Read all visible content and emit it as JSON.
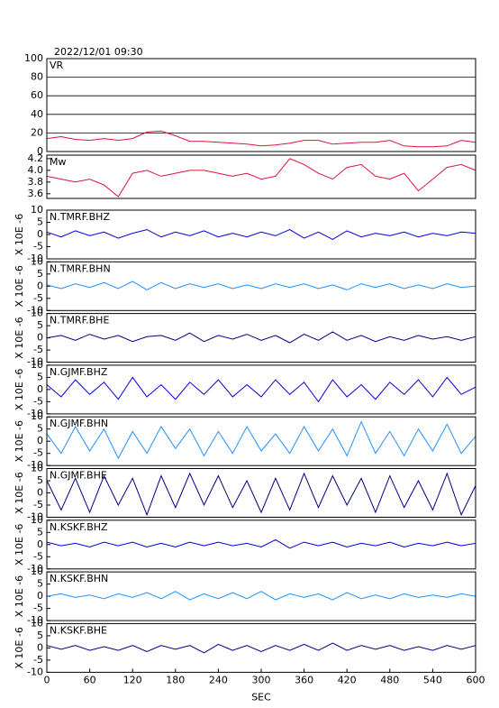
{
  "chart_data": [
    {
      "type": "line",
      "title": "2022/12/01 09:30",
      "label": "VR",
      "color": "#dc143c",
      "grid": true,
      "x": [
        0,
        20,
        40,
        60,
        80,
        100,
        120,
        140,
        160,
        180,
        200,
        220,
        240,
        260,
        280,
        300,
        320,
        340,
        360,
        380,
        400,
        420,
        440,
        460,
        480,
        500,
        520,
        540,
        560,
        580,
        600
      ],
      "values": [
        14,
        16,
        13,
        12,
        14,
        12,
        14,
        21,
        22,
        17,
        11,
        11,
        10,
        9,
        8,
        6,
        7,
        9,
        12,
        12,
        8,
        9,
        10,
        10,
        12,
        6,
        5,
        5,
        6,
        12,
        10
      ],
      "xlim": [
        0,
        600
      ],
      "ylim": [
        0,
        100
      ],
      "yticks": [
        0,
        20,
        40,
        60,
        80,
        100
      ]
    },
    {
      "type": "line",
      "label": "Mw",
      "color": "#dc143c",
      "x": [
        0,
        20,
        40,
        60,
        80,
        100,
        120,
        140,
        160,
        180,
        200,
        220,
        240,
        260,
        280,
        300,
        320,
        340,
        360,
        380,
        400,
        420,
        440,
        460,
        480,
        500,
        520,
        540,
        560,
        580,
        600
      ],
      "values": [
        3.9,
        3.85,
        3.8,
        3.85,
        3.75,
        3.55,
        3.95,
        4.0,
        3.9,
        3.95,
        4.0,
        4.0,
        3.95,
        3.9,
        3.95,
        3.85,
        3.9,
        4.2,
        4.1,
        3.95,
        3.85,
        4.05,
        4.1,
        3.9,
        3.85,
        3.95,
        3.65,
        3.85,
        4.05,
        4.1,
        4.0
      ],
      "xlim": [
        0,
        600
      ],
      "ylim": [
        3.52,
        4.26
      ],
      "yticks": [
        3.6,
        3.8,
        {
          "value": 4,
          "label": "4.0"
        },
        4.2
      ]
    },
    {
      "type": "line",
      "label": "N.TMRF.BHZ",
      "ylabel": "X 10E -6",
      "color": "#0000e0",
      "x": [
        0,
        20,
        40,
        60,
        80,
        100,
        120,
        140,
        160,
        180,
        200,
        220,
        240,
        260,
        280,
        300,
        320,
        340,
        360,
        380,
        400,
        420,
        440,
        460,
        480,
        500,
        520,
        540,
        560,
        580,
        600
      ],
      "values": [
        1,
        -1,
        1.5,
        -0.5,
        1,
        -1.5,
        0.5,
        2,
        -1,
        1,
        -0.5,
        1.5,
        -1,
        0.5,
        -1,
        1,
        -0.5,
        2,
        -1.5,
        1,
        -2,
        1.5,
        -1,
        0.5,
        -0.5,
        1,
        -1,
        0.5,
        -0.5,
        1,
        0.5
      ],
      "xlim": [
        0,
        600
      ],
      "ylim": [
        -10,
        10
      ],
      "yticks": [
        -10,
        -5,
        0,
        5,
        10
      ]
    },
    {
      "type": "line",
      "label": "N.TMRF.BHN",
      "ylabel": "X 10E -6",
      "color": "#1e90ff",
      "x": [
        0,
        20,
        40,
        60,
        80,
        100,
        120,
        140,
        160,
        180,
        200,
        220,
        240,
        260,
        280,
        300,
        320,
        340,
        360,
        380,
        400,
        420,
        440,
        460,
        480,
        500,
        520,
        540,
        560,
        580,
        600
      ],
      "values": [
        0.5,
        -1,
        1,
        -0.5,
        1.5,
        -1,
        2,
        -1.5,
        1.5,
        -1,
        1,
        -0.5,
        1,
        -1,
        0.5,
        -1,
        1,
        -0.5,
        1,
        -1,
        0.5,
        -1.5,
        1,
        -0.5,
        1,
        -1,
        0.5,
        -1,
        1,
        -0.5,
        0
      ],
      "xlim": [
        0,
        600
      ],
      "ylim": [
        -10,
        10
      ],
      "yticks": [
        -10,
        -5,
        0,
        5,
        10
      ]
    },
    {
      "type": "line",
      "label": "N.TMRF.BHE",
      "ylabel": "X 10E -6",
      "color": "#000080",
      "x": [
        0,
        20,
        40,
        60,
        80,
        100,
        120,
        140,
        160,
        180,
        200,
        220,
        240,
        260,
        280,
        300,
        320,
        340,
        360,
        380,
        400,
        420,
        440,
        460,
        480,
        500,
        520,
        540,
        560,
        580,
        600
      ],
      "values": [
        0,
        1,
        -1,
        1.5,
        -0.5,
        1,
        -1.5,
        0.5,
        1,
        -1,
        2,
        -1.5,
        1,
        -0.5,
        1.5,
        -1,
        1,
        -2,
        1.5,
        -1,
        2.5,
        -1,
        1,
        -1.5,
        0.5,
        -1,
        1,
        -0.5,
        0.5,
        -1,
        0.5
      ],
      "xlim": [
        0,
        600
      ],
      "ylim": [
        -10,
        10
      ],
      "yticks": [
        -10,
        -5,
        0,
        5,
        10
      ]
    },
    {
      "type": "line",
      "label": "N.GJMF.BHZ",
      "ylabel": "X 10E -6",
      "color": "#0000e0",
      "x": [
        0,
        20,
        40,
        60,
        80,
        100,
        120,
        140,
        160,
        180,
        200,
        220,
        240,
        260,
        280,
        300,
        320,
        340,
        360,
        380,
        400,
        420,
        440,
        460,
        480,
        500,
        520,
        540,
        560,
        580,
        600
      ],
      "values": [
        2,
        -3,
        4,
        -2,
        3,
        -4,
        5,
        -3,
        2,
        -4,
        3,
        -2,
        4,
        -3,
        2,
        -3,
        4,
        -2,
        3,
        -5,
        4,
        -3,
        2,
        -4,
        3,
        -2,
        4,
        -3,
        5,
        -2,
        1
      ],
      "xlim": [
        0,
        600
      ],
      "ylim": [
        -10,
        10
      ],
      "yticks": [
        -10,
        -5,
        0,
        5,
        10
      ]
    },
    {
      "type": "line",
      "label": "N.GJMF.BHN",
      "ylabel": "X 10E -6",
      "color": "#1e90ff",
      "x": [
        0,
        20,
        40,
        60,
        80,
        100,
        120,
        140,
        160,
        180,
        200,
        220,
        240,
        260,
        280,
        300,
        320,
        340,
        360,
        380,
        400,
        420,
        440,
        460,
        480,
        500,
        520,
        540,
        560,
        580,
        600
      ],
      "values": [
        3,
        -5,
        6,
        -4,
        5,
        -7,
        4,
        -5,
        6,
        -3,
        5,
        -6,
        4,
        -5,
        6,
        -4,
        3,
        -5,
        6,
        -4,
        5,
        -6,
        8,
        -5,
        4,
        -6,
        5,
        -4,
        7,
        -5,
        2
      ],
      "xlim": [
        0,
        600
      ],
      "ylim": [
        -10,
        10
      ],
      "yticks": [
        -10,
        -5,
        0,
        5,
        10
      ]
    },
    {
      "type": "line",
      "label": "N.GJMF.BHE",
      "ylabel": "X 10E -6",
      "color": "#000080",
      "x": [
        0,
        20,
        40,
        60,
        80,
        100,
        120,
        140,
        160,
        180,
        200,
        220,
        240,
        260,
        280,
        300,
        320,
        340,
        360,
        380,
        400,
        420,
        440,
        460,
        480,
        500,
        520,
        540,
        560,
        580,
        600
      ],
      "values": [
        5,
        -7,
        6,
        -8,
        7,
        -5,
        6,
        -9,
        7,
        -6,
        8,
        -5,
        7,
        -6,
        5,
        -8,
        6,
        -7,
        8,
        -6,
        7,
        -5,
        6,
        -8,
        7,
        -6,
        5,
        -7,
        8,
        -9,
        3
      ],
      "xlim": [
        0,
        600
      ],
      "ylim": [
        -10,
        10
      ],
      "yticks": [
        -10,
        -5,
        0,
        5,
        10
      ]
    },
    {
      "type": "line",
      "label": "N.KSKF.BHZ",
      "ylabel": "X 10E -6",
      "color": "#0000e0",
      "x": [
        0,
        20,
        40,
        60,
        80,
        100,
        120,
        140,
        160,
        180,
        200,
        220,
        240,
        260,
        280,
        300,
        320,
        340,
        360,
        380,
        400,
        420,
        440,
        460,
        480,
        500,
        520,
        540,
        560,
        580,
        600
      ],
      "values": [
        1,
        -0.5,
        0.5,
        -1,
        1,
        -0.5,
        1,
        -1,
        0.5,
        -1,
        1,
        -0.5,
        1,
        -0.5,
        0.5,
        -1,
        2,
        -1.5,
        1,
        -0.5,
        1,
        -1,
        0.5,
        -0.5,
        1,
        -1,
        0.5,
        -0.5,
        1,
        -0.5,
        0.5
      ],
      "xlim": [
        0,
        600
      ],
      "ylim": [
        -10,
        10
      ],
      "yticks": [
        -10,
        -5,
        0,
        5,
        10
      ]
    },
    {
      "type": "line",
      "label": "N.KSKF.BHN",
      "ylabel": "X 10E -6",
      "color": "#1e90ff",
      "x": [
        0,
        20,
        40,
        60,
        80,
        100,
        120,
        140,
        160,
        180,
        200,
        220,
        240,
        260,
        280,
        300,
        320,
        340,
        360,
        380,
        400,
        420,
        440,
        460,
        480,
        500,
        520,
        540,
        560,
        580,
        600
      ],
      "values": [
        0,
        1,
        -0.5,
        0.5,
        -1,
        1,
        -0.5,
        1.5,
        -1,
        2,
        -1.5,
        1,
        -1,
        1.5,
        -1,
        2,
        -1.5,
        1,
        -0.5,
        1,
        -1.5,
        1.5,
        -1,
        0.5,
        -1,
        1,
        -0.5,
        0.5,
        -0.5,
        1,
        0
      ],
      "xlim": [
        0,
        600
      ],
      "ylim": [
        -10,
        10
      ],
      "yticks": [
        -10,
        -5,
        0,
        5,
        10
      ]
    },
    {
      "type": "line",
      "label": "N.KSKF.BHE",
      "ylabel": "X 10E -6",
      "xlabel": "SEC",
      "color": "#000080",
      "x": [
        0,
        20,
        40,
        60,
        80,
        100,
        120,
        140,
        160,
        180,
        200,
        220,
        240,
        260,
        280,
        300,
        320,
        340,
        360,
        380,
        400,
        420,
        440,
        460,
        480,
        500,
        520,
        540,
        560,
        580,
        600
      ],
      "values": [
        1,
        -0.5,
        1,
        -1,
        0.5,
        -1,
        1,
        -1.5,
        1,
        -0.5,
        1,
        -2,
        1.5,
        -1,
        1,
        -1.5,
        1,
        -1,
        1.5,
        -1,
        2,
        -1,
        1,
        -0.5,
        1,
        -1,
        0.5,
        -1,
        1,
        -0.5,
        1
      ],
      "xlim": [
        0,
        600
      ],
      "ylim": [
        -10,
        10
      ],
      "yticks": [
        -10,
        -5,
        0,
        5,
        10
      ],
      "xticks": [
        0,
        60,
        120,
        180,
        240,
        300,
        360,
        420,
        480,
        540,
        600
      ]
    }
  ]
}
